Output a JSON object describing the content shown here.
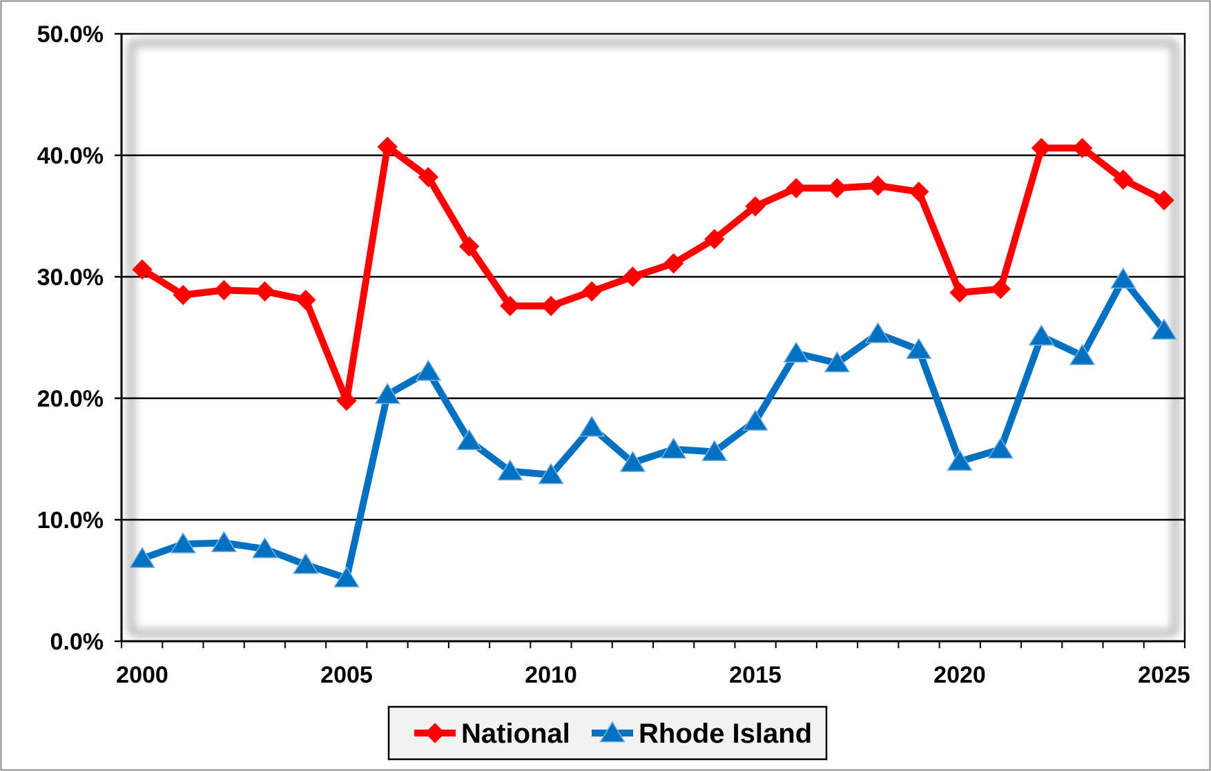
{
  "chart_data": {
    "type": "line",
    "title": "",
    "xlabel": "",
    "ylabel": "",
    "x": [
      2000,
      2001,
      2002,
      2003,
      2004,
      2005,
      2006,
      2007,
      2008,
      2009,
      2010,
      2011,
      2012,
      2013,
      2014,
      2015,
      2016,
      2017,
      2018,
      2019,
      2020,
      2021,
      2022,
      2023,
      2024,
      2025
    ],
    "xlim": [
      2000,
      2025
    ],
    "x_ticks": [
      2000,
      2005,
      2010,
      2015,
      2020,
      2025
    ],
    "x_tick_labels": [
      "2000",
      "2005",
      "2010",
      "2015",
      "2020",
      "2025"
    ],
    "ylim": [
      0,
      50
    ],
    "y_ticks": [
      0,
      10,
      20,
      30,
      40,
      50
    ],
    "y_tick_labels": [
      "0.0%",
      "10.0%",
      "20.0%",
      "30.0%",
      "40.0%",
      "50.0%"
    ],
    "grid": "horizontal",
    "legend": "bottom",
    "series": [
      {
        "name": "National",
        "color": "#ff0000",
        "marker": "diamond",
        "values": [
          30.6,
          28.5,
          28.9,
          28.8,
          28.1,
          19.8,
          40.7,
          38.2,
          32.5,
          27.6,
          27.6,
          28.8,
          30.0,
          31.1,
          33.1,
          35.8,
          37.3,
          37.3,
          37.5,
          37.0,
          28.7,
          29.0,
          40.6,
          40.6,
          38.0,
          36.3
        ]
      },
      {
        "name": "Rhode Island",
        "color": "#0070c0",
        "marker": "triangle",
        "values": [
          6.8,
          8.0,
          8.1,
          7.6,
          6.3,
          5.2,
          20.3,
          22.2,
          16.5,
          14.0,
          13.7,
          17.6,
          14.7,
          15.8,
          15.6,
          18.1,
          23.7,
          22.9,
          25.3,
          24.0,
          14.8,
          15.8,
          25.1,
          23.5,
          29.8,
          25.6
        ]
      }
    ]
  }
}
